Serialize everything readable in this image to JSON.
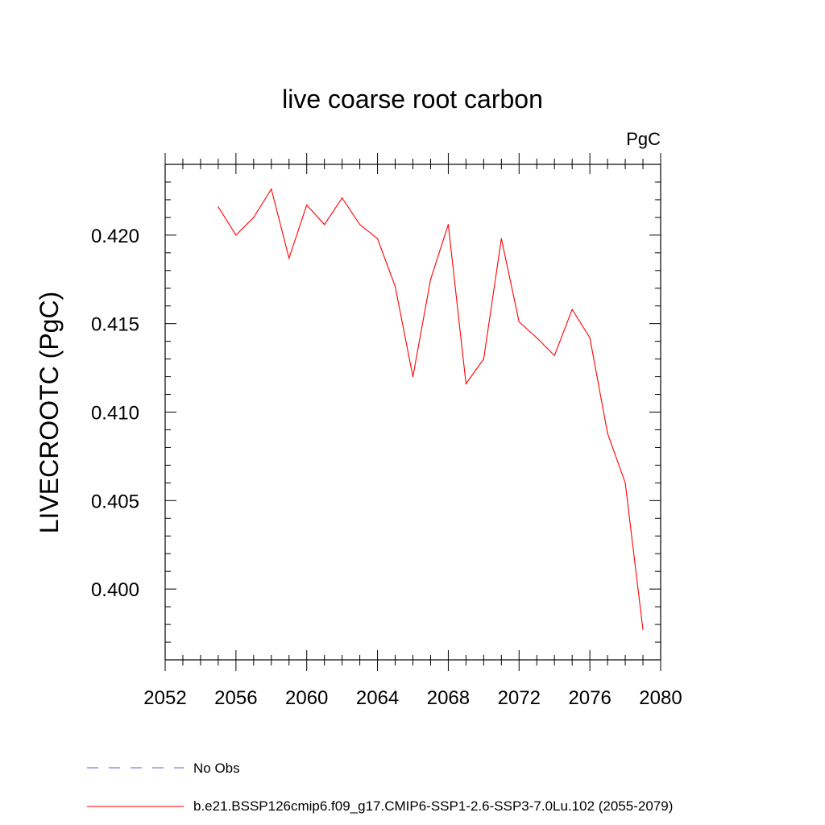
{
  "chart_data": {
    "type": "line",
    "title": "live coarse root carbon",
    "units_label": "PgC",
    "ylabel": "LIVECROOTC  (PgC)",
    "xlabel": "",
    "xlim": [
      2052,
      2080
    ],
    "ylim": [
      0.396,
      0.424
    ],
    "x_ticks": [
      2052,
      2056,
      2060,
      2064,
      2068,
      2072,
      2076,
      2080
    ],
    "y_ticks": [
      0.4,
      0.405,
      0.41,
      0.415,
      0.42
    ],
    "x_tick_labels": [
      "2052",
      "2056",
      "2060",
      "2064",
      "2068",
      "2072",
      "2076",
      "2080"
    ],
    "y_tick_labels": [
      "0.400",
      "0.405",
      "0.410",
      "0.415",
      "0.420"
    ],
    "grid": false,
    "legend_placement": "bottom",
    "series": [
      {
        "name": "b.e21.BSSP126cmip6.f09_g17.CMIP6-SSP1-2.6-SSP3-7.0Lu.102 (2055-2079)",
        "color": "#ff0000",
        "dash": "solid",
        "x": [
          2055,
          2056,
          2057,
          2058,
          2059,
          2060,
          2061,
          2062,
          2063,
          2064,
          2065,
          2066,
          2067,
          2068,
          2069,
          2070,
          2071,
          2072,
          2073,
          2074,
          2075,
          2076,
          2077,
          2078,
          2079
        ],
        "values": [
          0.4216,
          0.42,
          0.421,
          0.4226,
          0.4187,
          0.4217,
          0.4206,
          0.4221,
          0.4206,
          0.4198,
          0.4171,
          0.412,
          0.4175,
          0.4206,
          0.4116,
          0.413,
          0.4198,
          0.4151,
          0.4142,
          0.4132,
          0.4158,
          0.4142,
          0.4088,
          0.406,
          0.3977
        ]
      }
    ],
    "legend": [
      {
        "label": "No Obs",
        "color": "#6a5acd",
        "dash": "dashed"
      },
      {
        "label": "b.e21.BSSP126cmip6.f09_g17.CMIP6-SSP1-2.6-SSP3-7.0Lu.102 (2055-2079)",
        "color": "#ff0000",
        "dash": "solid"
      }
    ]
  }
}
